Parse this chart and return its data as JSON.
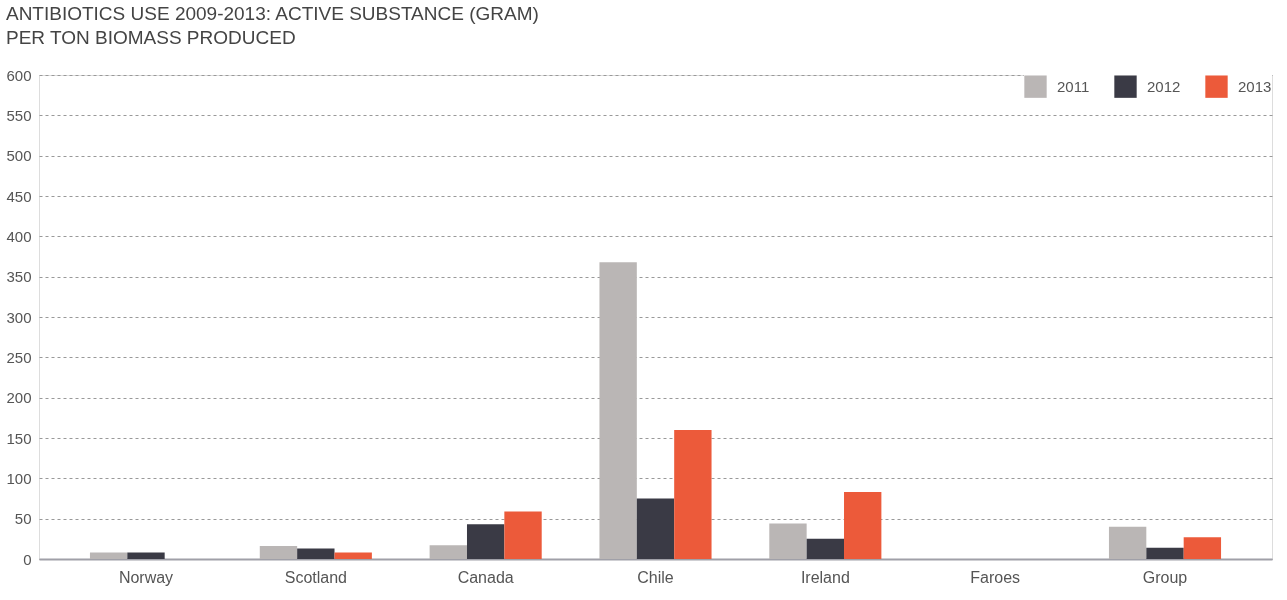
{
  "chart_data": {
    "type": "bar",
    "title": "ANTIBIOTICS USE 2009-2013: ACTIVE SUBSTANCE (GRAM) PER TON BIOMASS PRODUCED",
    "categories": [
      "Norway",
      "Scotland",
      "Canada",
      "Chile",
      "Ireland",
      "Faroes",
      "Group"
    ],
    "series": [
      {
        "name": "2011",
        "color": "#bab6b5",
        "values": [
          8,
          16,
          17,
          368,
          44,
          null,
          40
        ]
      },
      {
        "name": "2012",
        "color": "#3a3a45",
        "values": [
          8,
          13,
          43,
          75,
          25,
          null,
          14
        ]
      },
      {
        "name": "2013",
        "color": "#ec5a3a",
        "values": [
          null,
          8,
          59,
          160,
          83,
          null,
          27
        ]
      }
    ],
    "ylim": [
      0,
      600
    ],
    "yticks": [
      0,
      50,
      100,
      150,
      200,
      250,
      300,
      350,
      400,
      450,
      500,
      550,
      600
    ],
    "grid": "y",
    "legend": "top right"
  }
}
